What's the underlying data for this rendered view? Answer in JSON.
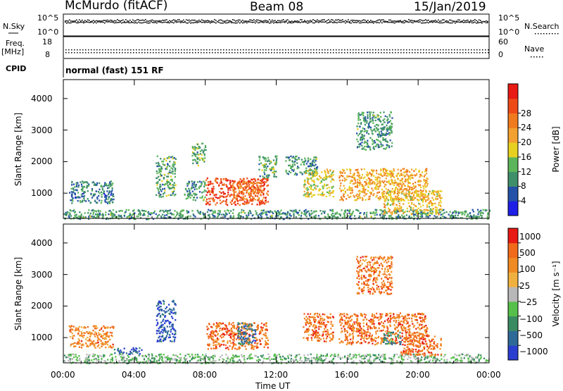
{
  "header": {
    "station": "McMurdo (fitACF)",
    "beam": "Beam 08",
    "date": "15/Jan/2019"
  },
  "aux_panels": {
    "nsky_label": "N.Sky",
    "nsky_ticks": [
      "10^5",
      "10^0"
    ],
    "nsearch_label": "N.Search",
    "nsearch_ticks": [
      "10^5",
      "10^0"
    ],
    "freq_label": "Freq.",
    "freq_unit": "[MHz]",
    "freq_ticks": [
      "18",
      "8"
    ],
    "nave_label": "Nave",
    "nave_ticks": [
      "60",
      "0"
    ],
    "cpid_label": "CPID",
    "cpid_value": "normal (fast) 151 RF"
  },
  "chart_data": [
    {
      "type": "heatmap",
      "name": "power",
      "ylabel": "Slant Range [km]",
      "xlabel": "Time UT",
      "ylim": [
        200,
        4600
      ],
      "xlim": [
        0,
        24
      ],
      "x_ticks": [
        "00:00",
        "04:00",
        "08:00",
        "12:00",
        "16:00",
        "20:00",
        "00:00"
      ],
      "y_ticks": [
        "1000",
        "2000",
        "3000",
        "4000"
      ],
      "colorbar": {
        "label": "Power [dB]",
        "ticks": [
          "4",
          "8",
          "12",
          "16",
          "20",
          "24",
          "28"
        ],
        "colors": [
          "#1f1fe8",
          "#2452a8",
          "#3f8f6a",
          "#5cb55a",
          "#e8d020",
          "#f2a030",
          "#f07a1e",
          "#ee4a18",
          "#e81a14"
        ]
      },
      "regions": [
        {
          "t0": 0.0,
          "t1": 24.0,
          "r0": 200,
          "r1": 500,
          "level": 0.3
        },
        {
          "t0": 0.3,
          "t1": 2.8,
          "r0": 700,
          "r1": 1400,
          "level": 0.25
        },
        {
          "t0": 5.2,
          "t1": 6.3,
          "r0": 900,
          "r1": 2200,
          "level": 0.35
        },
        {
          "t0": 6.8,
          "t1": 8.0,
          "r0": 800,
          "r1": 1400,
          "level": 0.3
        },
        {
          "t0": 8.0,
          "t1": 11.5,
          "r0": 650,
          "r1": 1500,
          "level": 0.85
        },
        {
          "t0": 9.5,
          "t1": 11.2,
          "r0": 800,
          "r1": 1400,
          "level": 0.7
        },
        {
          "t0": 12.5,
          "t1": 14.3,
          "r0": 1600,
          "r1": 2200,
          "level": 0.3
        },
        {
          "t0": 13.5,
          "t1": 15.2,
          "r0": 900,
          "r1": 1800,
          "level": 0.5
        },
        {
          "t0": 15.5,
          "t1": 20.5,
          "r0": 800,
          "r1": 1800,
          "level": 0.6
        },
        {
          "t0": 18.0,
          "t1": 21.3,
          "r0": 350,
          "r1": 1100,
          "level": 0.55
        },
        {
          "t0": 16.5,
          "t1": 18.5,
          "r0": 2400,
          "r1": 3600,
          "level": 0.3
        },
        {
          "t0": 7.2,
          "t1": 8.0,
          "r0": 1900,
          "r1": 2600,
          "level": 0.35
        },
        {
          "t0": 11.0,
          "t1": 12.0,
          "r0": 1500,
          "r1": 2200,
          "level": 0.35
        }
      ]
    },
    {
      "type": "heatmap",
      "name": "velocity",
      "ylabel": "Slant Range [km]",
      "xlabel": "Time UT",
      "ylim": [
        200,
        4600
      ],
      "xlim": [
        0,
        24
      ],
      "x_ticks": [
        "00:00",
        "04:00",
        "08:00",
        "12:00",
        "16:00",
        "20:00",
        "00:00"
      ],
      "y_ticks": [
        "1000",
        "2000",
        "3000",
        "4000"
      ],
      "colorbar": {
        "label": "Velocity [m s⁻¹]",
        "ticks": [
          "1000",
          "500",
          "100",
          "25",
          "−25",
          "−100",
          "−500",
          "−1000"
        ],
        "colors": [
          "#2a3fd0",
          "#2e6a98",
          "#3a8a62",
          "#56c04a",
          "#b8b8b8",
          "#f0b040",
          "#f08a22",
          "#f06a1a",
          "#e81a14"
        ]
      },
      "regions": [
        {
          "t0": 0.0,
          "t1": 24.0,
          "r0": 200,
          "r1": 500,
          "level": 0.4
        },
        {
          "t0": 0.3,
          "t1": 2.8,
          "r0": 700,
          "r1": 1400,
          "level": 0.75
        },
        {
          "t0": 2.8,
          "t1": 4.4,
          "r0": 500,
          "r1": 700,
          "level": 0.15
        },
        {
          "t0": 5.2,
          "t1": 6.3,
          "r0": 900,
          "r1": 2200,
          "level": 0.1
        },
        {
          "t0": 8.0,
          "t1": 11.5,
          "r0": 650,
          "r1": 1500,
          "level": 0.8
        },
        {
          "t0": 9.8,
          "t1": 10.8,
          "r0": 800,
          "r1": 1500,
          "level": 0.2
        },
        {
          "t0": 13.5,
          "t1": 15.2,
          "r0": 900,
          "r1": 1800,
          "level": 0.8
        },
        {
          "t0": 15.5,
          "t1": 20.5,
          "r0": 800,
          "r1": 1800,
          "level": 0.8
        },
        {
          "t0": 18.0,
          "t1": 19.0,
          "r0": 800,
          "r1": 1200,
          "level": 0.25
        },
        {
          "t0": 19.0,
          "t1": 21.3,
          "r0": 450,
          "r1": 1100,
          "level": 0.8
        },
        {
          "t0": 16.5,
          "t1": 18.5,
          "r0": 2400,
          "r1": 3600,
          "level": 0.78
        }
      ]
    }
  ]
}
